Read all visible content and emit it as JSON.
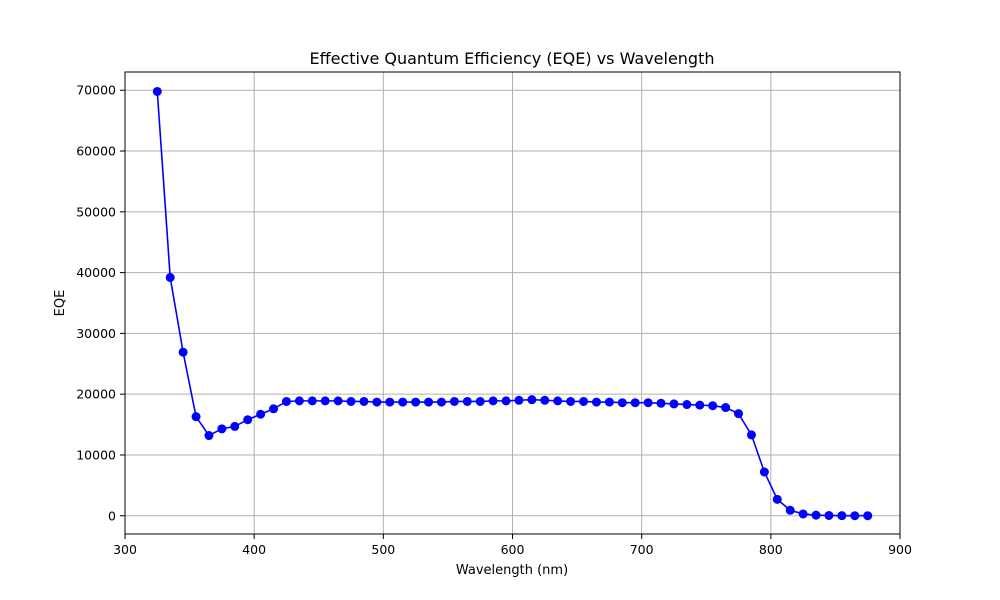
{
  "chart_data": {
    "type": "line",
    "title": "Effective Quantum Efficiency (EQE) vs Wavelength",
    "xlabel": "Wavelength (nm)",
    "ylabel": "EQE",
    "xlim": [
      300,
      900
    ],
    "ylim": [
      -3000,
      73000
    ],
    "x_ticks": [
      300,
      400,
      500,
      600,
      700,
      800,
      900
    ],
    "y_ticks": [
      0,
      10000,
      20000,
      30000,
      40000,
      50000,
      60000,
      70000
    ],
    "x_tick_labels": [
      "300",
      "400",
      "500",
      "600",
      "700",
      "800",
      "900"
    ],
    "y_tick_labels": [
      "0",
      "10000",
      "20000",
      "30000",
      "40000",
      "50000",
      "60000",
      "70000"
    ],
    "grid": true,
    "legend": false,
    "series": [
      {
        "color": "#0000ff",
        "marker": "circle",
        "x": [
          325,
          335,
          345,
          355,
          365,
          375,
          385,
          395,
          405,
          415,
          425,
          435,
          445,
          455,
          465,
          475,
          485,
          495,
          505,
          515,
          525,
          535,
          545,
          555,
          565,
          575,
          585,
          595,
          605,
          615,
          625,
          635,
          645,
          655,
          665,
          675,
          685,
          695,
          705,
          715,
          725,
          735,
          745,
          755,
          765,
          775,
          785,
          795,
          805,
          815,
          825,
          835,
          845,
          855,
          865,
          875
        ],
        "y": [
          69800,
          39200,
          26900,
          16300,
          13200,
          14300,
          14700,
          15800,
          16700,
          17600,
          18800,
          18900,
          18900,
          18900,
          18900,
          18800,
          18800,
          18700,
          18700,
          18700,
          18700,
          18700,
          18700,
          18800,
          18800,
          18800,
          18900,
          18900,
          19000,
          19100,
          19000,
          18900,
          18800,
          18800,
          18700,
          18700,
          18600,
          18600,
          18600,
          18500,
          18400,
          18300,
          18200,
          18100,
          17800,
          16800,
          13300,
          7200,
          2700,
          900,
          300,
          100,
          50,
          20,
          10,
          5
        ]
      }
    ]
  }
}
